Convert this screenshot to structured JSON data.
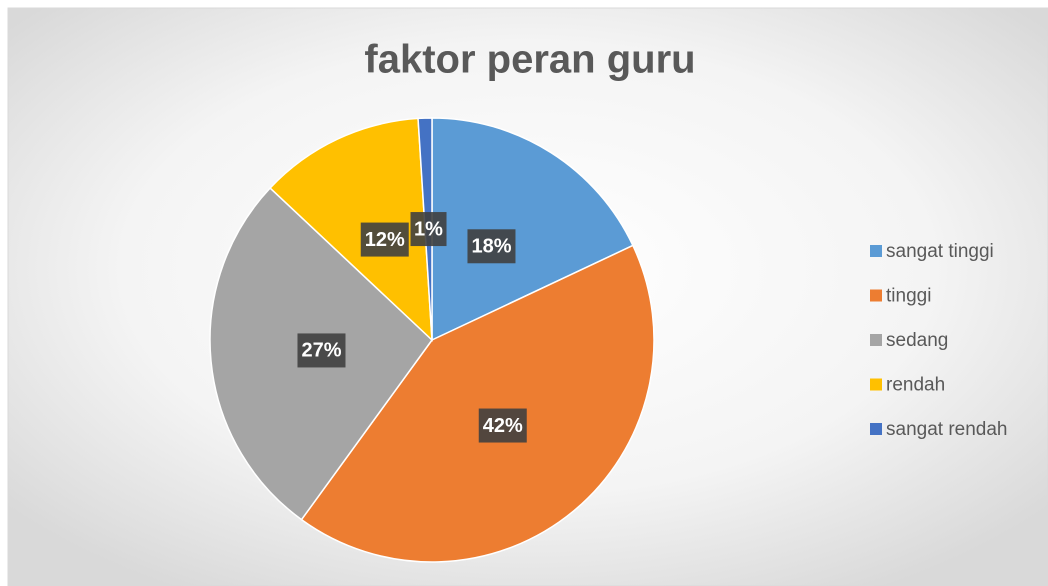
{
  "chart_data": {
    "type": "pie",
    "title": "faktor peran guru",
    "categories": [
      "sangat tinggi",
      "tinggi",
      "sedang",
      "rendah",
      "sangat rendah"
    ],
    "values": [
      18,
      42,
      27,
      12,
      1
    ],
    "value_labels": [
      "18%",
      "42%",
      "27%",
      "12%",
      "1%"
    ],
    "colors": [
      "#5b9bd5",
      "#ed7d31",
      "#a5a5a5",
      "#ffc000",
      "#4472c4"
    ],
    "legend": "right"
  }
}
